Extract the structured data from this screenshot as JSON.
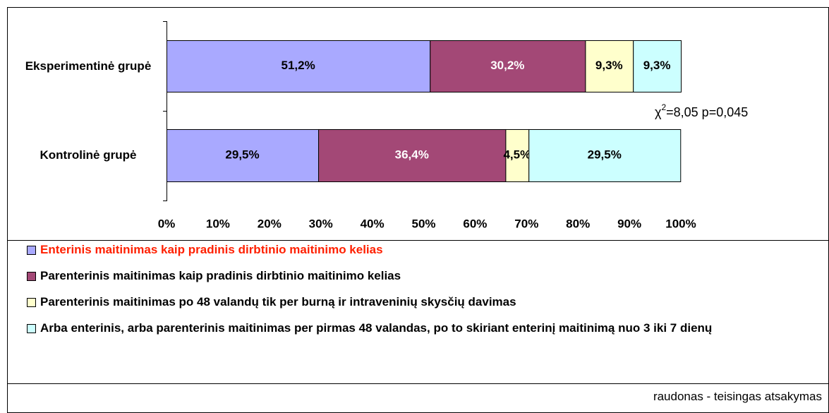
{
  "chart_data": {
    "type": "stacked_barh",
    "categories": [
      "Eksperimentinė grupė",
      "Kontrolinė grupė"
    ],
    "series": [
      {
        "name": "Enterinis maitinimas kaip pradinis dirbtinio maitinimo kelias",
        "color": "#a9a9ff",
        "text_color": "#000000",
        "legend_color": "#ff2000",
        "values": [
          51.2,
          29.5
        ],
        "value_labels": [
          "51,2%",
          "29,5%"
        ]
      },
      {
        "name": "Parenterinis maitinimas kaip pradinis dirbtinio maitinimo kelias",
        "color": "#a34876",
        "text_color": "#ffffff",
        "legend_color": "#000000",
        "values": [
          30.2,
          36.4
        ],
        "value_labels": [
          "30,2%",
          "36,4%"
        ]
      },
      {
        "name": "Parenterinis maitinimas po 48 valandų tik per burną ir intraveninių skysčių davimas",
        "color": "#ffffcc",
        "text_color": "#000000",
        "legend_color": "#000000",
        "values": [
          9.3,
          4.5
        ],
        "value_labels": [
          "9,3%",
          "4,5%"
        ]
      },
      {
        "name": "Arba enterinis, arba parenterinis maitinimas per pirmas 48 valandas, po to skiriant enterinį maitinimą nuo 3 iki 7 dienų",
        "color": "#ccffff",
        "text_color": "#000000",
        "legend_color": "#000000",
        "values": [
          9.3,
          29.5
        ],
        "value_labels": [
          "9,3%",
          "29,5%"
        ]
      }
    ],
    "xlim": [
      0,
      100
    ],
    "xticks": [
      {
        "value": 0,
        "label": "0%"
      },
      {
        "value": 10,
        "label": "10%"
      },
      {
        "value": 20,
        "label": "20%"
      },
      {
        "value": 30,
        "label": "30%"
      },
      {
        "value": 40,
        "label": "40%"
      },
      {
        "value": 50,
        "label": "50%"
      },
      {
        "value": 60,
        "label": "60%"
      },
      {
        "value": 70,
        "label": "70%"
      },
      {
        "value": 80,
        "label": "80%"
      },
      {
        "value": 90,
        "label": "90%"
      },
      {
        "value": 100,
        "label": "100%"
      }
    ],
    "annotation": {
      "base": "χ",
      "sup": "2",
      "rest": "=8,05 p=0,045"
    },
    "footnote": "raudonas - teisingas atsakymas",
    "grid": false
  }
}
